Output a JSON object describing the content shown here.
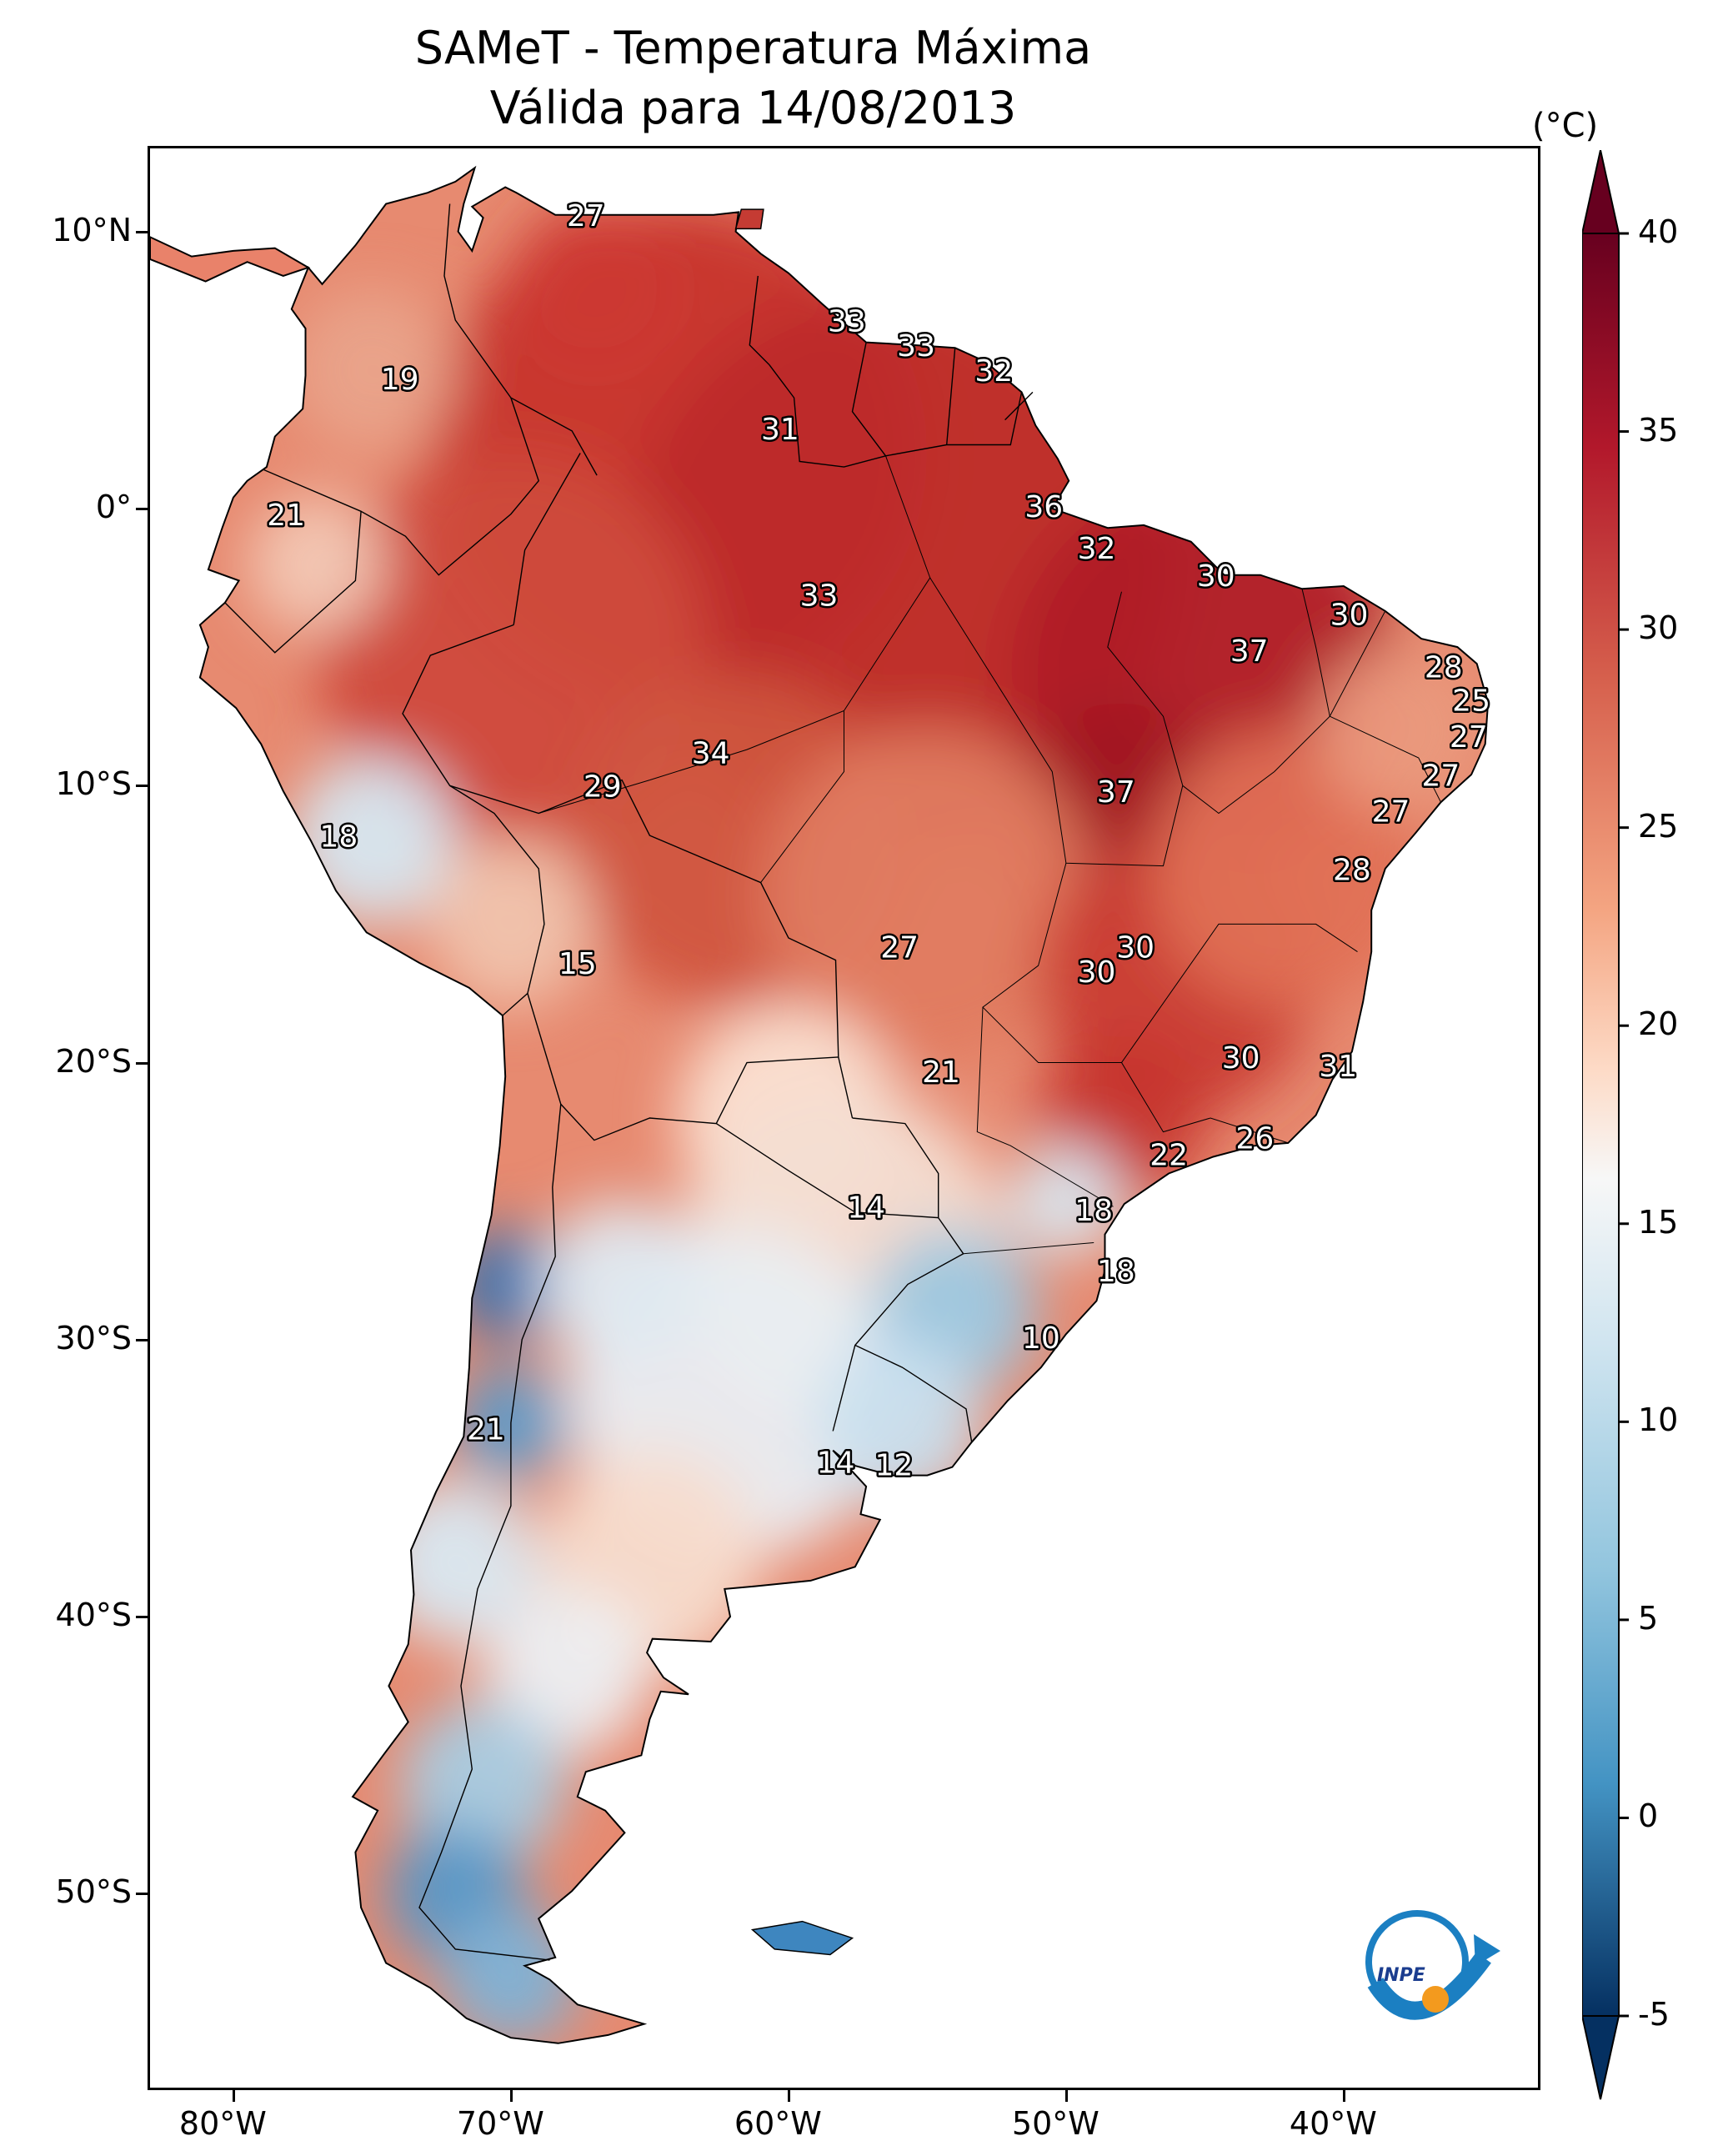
{
  "title": "SAMeT - Temperatura Máxima",
  "subtitle": "Válida para 14/08/2013",
  "colorbar": {
    "unit": "(°C)",
    "ticks": [
      "40",
      "35",
      "30",
      "25",
      "20",
      "15",
      "10",
      "5",
      "0",
      "-5"
    ],
    "min": -5,
    "max": 40,
    "extend": "both",
    "colormap": "RdBu_r"
  },
  "axes": {
    "lon_ticks": [
      "80°W",
      "70°W",
      "60°W",
      "50°W",
      "40°W"
    ],
    "lat_ticks": [
      "10°N",
      "0°",
      "10°S",
      "20°S",
      "30°S",
      "40°S",
      "50°S"
    ],
    "lon_range": [
      -83,
      -33
    ],
    "lat_range": [
      -57,
      13
    ]
  },
  "map_labels": [
    {
      "text": "27",
      "lon": -67.3,
      "lat": 10.5
    },
    {
      "text": "19",
      "lon": -74.0,
      "lat": 4.6
    },
    {
      "text": "33",
      "lon": -57.9,
      "lat": 6.7
    },
    {
      "text": "33",
      "lon": -55.4,
      "lat": 5.8
    },
    {
      "text": "32",
      "lon": -52.6,
      "lat": 4.9
    },
    {
      "text": "31",
      "lon": -60.3,
      "lat": 2.8
    },
    {
      "text": "21",
      "lon": -78.1,
      "lat": -0.3
    },
    {
      "text": "36",
      "lon": -50.8,
      "lat": -0.0
    },
    {
      "text": "32",
      "lon": -48.9,
      "lat": -1.5
    },
    {
      "text": "30",
      "lon": -44.6,
      "lat": -2.5
    },
    {
      "text": "30",
      "lon": -39.8,
      "lat": -3.9
    },
    {
      "text": "33",
      "lon": -58.9,
      "lat": -3.2
    },
    {
      "text": "37",
      "lon": -43.4,
      "lat": -5.2
    },
    {
      "text": "28",
      "lon": -36.4,
      "lat": -5.8
    },
    {
      "text": "25",
      "lon": -35.4,
      "lat": -7.0
    },
    {
      "text": "27",
      "lon": -35.5,
      "lat": -8.3
    },
    {
      "text": "27",
      "lon": -36.5,
      "lat": -9.7
    },
    {
      "text": "34",
      "lon": -62.8,
      "lat": -8.9
    },
    {
      "text": "29",
      "lon": -66.7,
      "lat": -10.1
    },
    {
      "text": "37",
      "lon": -48.2,
      "lat": -10.3
    },
    {
      "text": "27",
      "lon": -38.3,
      "lat": -11.0
    },
    {
      "text": "18",
      "lon": -76.2,
      "lat": -11.9
    },
    {
      "text": "28",
      "lon": -39.7,
      "lat": -13.1
    },
    {
      "text": "27",
      "lon": -56.0,
      "lat": -15.9
    },
    {
      "text": "30",
      "lon": -47.5,
      "lat": -15.9
    },
    {
      "text": "30",
      "lon": -48.9,
      "lat": -16.8
    },
    {
      "text": "15",
      "lon": -67.6,
      "lat": -16.5
    },
    {
      "text": "21",
      "lon": -54.5,
      "lat": -20.4
    },
    {
      "text": "30",
      "lon": -43.7,
      "lat": -19.9
    },
    {
      "text": "31",
      "lon": -40.2,
      "lat": -20.2
    },
    {
      "text": "22",
      "lon": -46.3,
      "lat": -23.4
    },
    {
      "text": "26",
      "lon": -43.2,
      "lat": -22.8
    },
    {
      "text": "14",
      "lon": -57.2,
      "lat": -25.3
    },
    {
      "text": "18",
      "lon": -49.0,
      "lat": -25.4
    },
    {
      "text": "18",
      "lon": -48.2,
      "lat": -27.6
    },
    {
      "text": "10",
      "lon": -50.9,
      "lat": -30.0
    },
    {
      "text": "21",
      "lon": -70.9,
      "lat": -33.3
    },
    {
      "text": "14",
      "lon": -58.3,
      "lat": -34.5
    },
    {
      "text": "12",
      "lon": -56.2,
      "lat": -34.6
    }
  ],
  "logo": {
    "text": "INPE"
  }
}
